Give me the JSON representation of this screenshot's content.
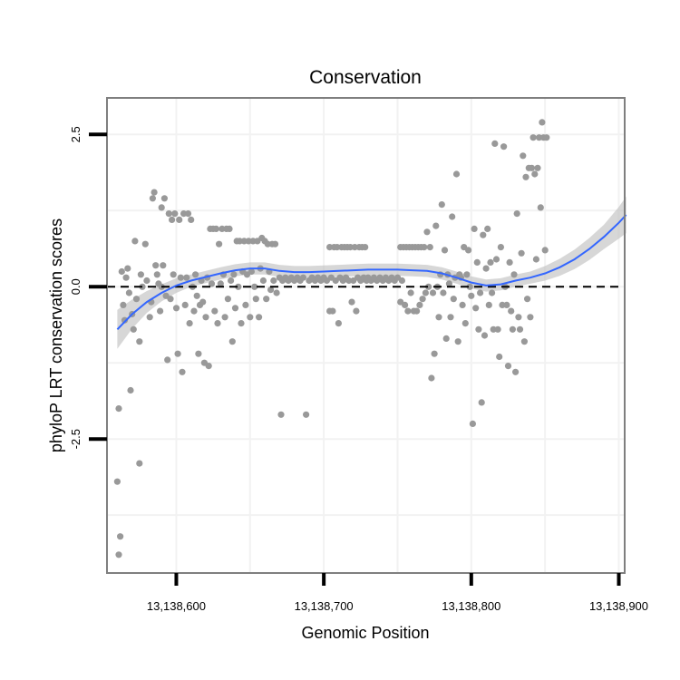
{
  "chart_data": {
    "type": "scatter",
    "title": "Conservation",
    "xlabel": "Genomic Position",
    "ylabel": "phyloP LRT conservation scores",
    "xlim": [
      13138553,
      13138904
    ],
    "ylim": [
      -4.7,
      3.1
    ],
    "x_ticks": [
      13138600,
      13138700,
      13138800,
      13138900
    ],
    "x_tick_labels": [
      "13,138,600",
      "13,138,700",
      "13,138,800",
      "13,138,900"
    ],
    "y_ticks": [
      -2.5,
      0,
      2.5
    ],
    "y_tick_labels": [
      "-2.5",
      "0.0",
      "2.5"
    ],
    "reference_line_y": 0,
    "colors": {
      "points": "#999999",
      "smooth": "#3366ff",
      "band": "#bdbdbd",
      "panel_border": "#7f7f7f",
      "grid": "#f2f2f2",
      "ref_line": "#000000"
    },
    "smooth": {
      "x": [
        13138560,
        13138570,
        13138580,
        13138590,
        13138600,
        13138610,
        13138620,
        13138630,
        13138640,
        13138650,
        13138660,
        13138670,
        13138680,
        13138690,
        13138700,
        13138710,
        13138720,
        13138730,
        13138740,
        13138750,
        13138760,
        13138770,
        13138780,
        13138790,
        13138800,
        13138810,
        13138820,
        13138830,
        13138840,
        13138850,
        13138860,
        13138870,
        13138880,
        13138890,
        13138900,
        13138905
      ],
      "y": [
        -0.7,
        -0.45,
        -0.25,
        -0.1,
        0.02,
        0.1,
        0.16,
        0.22,
        0.27,
        0.3,
        0.3,
        0.26,
        0.24,
        0.24,
        0.25,
        0.26,
        0.27,
        0.28,
        0.28,
        0.28,
        0.27,
        0.26,
        0.22,
        0.15,
        0.07,
        0.02,
        0.04,
        0.1,
        0.15,
        0.22,
        0.32,
        0.45,
        0.62,
        0.82,
        1.05,
        1.18
      ],
      "se": [
        0.32,
        0.24,
        0.18,
        0.14,
        0.12,
        0.1,
        0.1,
        0.1,
        0.1,
        0.1,
        0.1,
        0.1,
        0.1,
        0.1,
        0.1,
        0.1,
        0.1,
        0.1,
        0.1,
        0.1,
        0.1,
        0.1,
        0.1,
        0.1,
        0.1,
        0.1,
        0.1,
        0.1,
        0.1,
        0.12,
        0.14,
        0.16,
        0.18,
        0.2,
        0.26,
        0.3
      ]
    },
    "points": [
      [
        13138560,
        -3.2
      ],
      [
        13138561,
        -2.0
      ],
      [
        13138561,
        -4.4
      ],
      [
        13138562,
        -4.1
      ],
      [
        13138563,
        0.25
      ],
      [
        13138564,
        -0.3
      ],
      [
        13138565,
        -0.55
      ],
      [
        13138566,
        0.15
      ],
      [
        13138567,
        0.3
      ],
      [
        13138568,
        -0.1
      ],
      [
        13138569,
        -1.7
      ],
      [
        13138570,
        -0.45
      ],
      [
        13138571,
        -0.7
      ],
      [
        13138572,
        0.75
      ],
      [
        13138573,
        -0.2
      ],
      [
        13138575,
        -2.9
      ],
      [
        13138575,
        -0.9
      ],
      [
        13138576,
        0.2
      ],
      [
        13138577,
        0.0
      ],
      [
        13138579,
        0.7
      ],
      [
        13138580,
        0.1
      ],
      [
        13138582,
        -0.5
      ],
      [
        13138583,
        -0.25
      ],
      [
        13138584,
        1.45
      ],
      [
        13138585,
        1.55
      ],
      [
        13138586,
        0.35
      ],
      [
        13138587,
        0.2
      ],
      [
        13138588,
        0.05
      ],
      [
        13138589,
        -0.4
      ],
      [
        13138590,
        1.3
      ],
      [
        13138590,
        0.0
      ],
      [
        13138591,
        0.35
      ],
      [
        13138592,
        1.45
      ],
      [
        13138593,
        -0.15
      ],
      [
        13138594,
        -1.2
      ],
      [
        13138595,
        1.2
      ],
      [
        13138596,
        -0.2
      ],
      [
        13138597,
        1.1
      ],
      [
        13138598,
        0.2
      ],
      [
        13138599,
        1.2
      ],
      [
        13138600,
        -0.35
      ],
      [
        13138601,
        -1.1
      ],
      [
        13138602,
        1.1
      ],
      [
        13138603,
        0.15
      ],
      [
        13138604,
        -1.4
      ],
      [
        13138605,
        1.2
      ],
      [
        13138606,
        -0.3
      ],
      [
        13138607,
        0.15
      ],
      [
        13138608,
        1.2
      ],
      [
        13138609,
        -0.6
      ],
      [
        13138610,
        1.1
      ],
      [
        13138611,
        0.0
      ],
      [
        13138612,
        -0.4
      ],
      [
        13138613,
        0.2
      ],
      [
        13138614,
        -0.15
      ],
      [
        13138615,
        -1.1
      ],
      [
        13138616,
        -0.3
      ],
      [
        13138617,
        0.1
      ],
      [
        13138618,
        -0.25
      ],
      [
        13138619,
        -1.25
      ],
      [
        13138620,
        -0.5
      ],
      [
        13138621,
        0.15
      ],
      [
        13138622,
        -1.3
      ],
      [
        13138623,
        0.95
      ],
      [
        13138624,
        0.05
      ],
      [
        13138625,
        0.95
      ],
      [
        13138626,
        -0.4
      ],
      [
        13138627,
        0.95
      ],
      [
        13138628,
        -0.6
      ],
      [
        13138629,
        0.7
      ],
      [
        13138630,
        0.05
      ],
      [
        13138631,
        0.95
      ],
      [
        13138632,
        0.2
      ],
      [
        13138633,
        -0.5
      ],
      [
        13138634,
        0.95
      ],
      [
        13138635,
        -0.2
      ],
      [
        13138636,
        0.95
      ],
      [
        13138637,
        0.1
      ],
      [
        13138638,
        -0.9
      ],
      [
        13138639,
        0.2
      ],
      [
        13138640,
        -0.35
      ],
      [
        13138641,
        0.75
      ],
      [
        13138642,
        0.0
      ],
      [
        13138643,
        0.75
      ],
      [
        13138644,
        -0.6
      ],
      [
        13138645,
        0.25
      ],
      [
        13138646,
        0.75
      ],
      [
        13138647,
        -0.3
      ],
      [
        13138648,
        0.2
      ],
      [
        13138649,
        0.75
      ],
      [
        13138650,
        -0.5
      ],
      [
        13138651,
        0.25
      ],
      [
        13138652,
        0.75
      ],
      [
        13138653,
        0.0
      ],
      [
        13138654,
        -0.2
      ],
      [
        13138655,
        0.75
      ],
      [
        13138656,
        -0.5
      ],
      [
        13138657,
        0.3
      ],
      [
        13138658,
        0.8
      ],
      [
        13138659,
        0.1
      ],
      [
        13138660,
        0.75
      ],
      [
        13138661,
        -0.2
      ],
      [
        13138662,
        0.7
      ],
      [
        13138663,
        0.25
      ],
      [
        13138664,
        -0.05
      ],
      [
        13138665,
        0.7
      ],
      [
        13138666,
        0.1
      ],
      [
        13138667,
        0.7
      ],
      [
        13138668,
        -0.1
      ],
      [
        13138670,
        0.15
      ],
      [
        13138671,
        -2.1
      ],
      [
        13138672,
        0.1
      ],
      [
        13138674,
        0.15
      ],
      [
        13138676,
        0.1
      ],
      [
        13138678,
        0.15
      ],
      [
        13138680,
        0.1
      ],
      [
        13138682,
        0.15
      ],
      [
        13138684,
        0.1
      ],
      [
        13138686,
        0.15
      ],
      [
        13138688,
        -2.1
      ],
      [
        13138690,
        0.1
      ],
      [
        13138692,
        0.15
      ],
      [
        13138694,
        0.1
      ],
      [
        13138696,
        0.15
      ],
      [
        13138698,
        0.1
      ],
      [
        13138700,
        0.15
      ],
      [
        13138702,
        0.1
      ],
      [
        13138704,
        0.65
      ],
      [
        13138704,
        -0.4
      ],
      [
        13138705,
        0.15
      ],
      [
        13138706,
        -0.4
      ],
      [
        13138707,
        0.65
      ],
      [
        13138708,
        0.1
      ],
      [
        13138709,
        0.65
      ],
      [
        13138710,
        -0.6
      ],
      [
        13138711,
        0.15
      ],
      [
        13138712,
        0.65
      ],
      [
        13138713,
        0.1
      ],
      [
        13138714,
        0.65
      ],
      [
        13138715,
        0.15
      ],
      [
        13138716,
        0.65
      ],
      [
        13138717,
        0.1
      ],
      [
        13138718,
        0.65
      ],
      [
        13138719,
        -0.25
      ],
      [
        13138720,
        0.1
      ],
      [
        13138721,
        0.65
      ],
      [
        13138722,
        -0.4
      ],
      [
        13138723,
        0.15
      ],
      [
        13138724,
        0.65
      ],
      [
        13138725,
        0.1
      ],
      [
        13138726,
        0.65
      ],
      [
        13138727,
        0.15
      ],
      [
        13138728,
        0.65
      ],
      [
        13138729,
        0.1
      ],
      [
        13138730,
        0.15
      ],
      [
        13138732,
        0.1
      ],
      [
        13138734,
        0.15
      ],
      [
        13138736,
        0.1
      ],
      [
        13138738,
        0.15
      ],
      [
        13138740,
        0.1
      ],
      [
        13138742,
        0.15
      ],
      [
        13138744,
        0.1
      ],
      [
        13138746,
        0.15
      ],
      [
        13138748,
        0.1
      ],
      [
        13138750,
        0.15
      ],
      [
        13138752,
        0.65
      ],
      [
        13138752,
        -0.25
      ],
      [
        13138753,
        0.1
      ],
      [
        13138754,
        0.65
      ],
      [
        13138755,
        -0.3
      ],
      [
        13138756,
        0.65
      ],
      [
        13138757,
        -0.4
      ],
      [
        13138758,
        0.65
      ],
      [
        13138759,
        -0.1
      ],
      [
        13138760,
        0.65
      ],
      [
        13138761,
        -0.4
      ],
      [
        13138762,
        0.65
      ],
      [
        13138763,
        -0.4
      ],
      [
        13138764,
        0.65
      ],
      [
        13138765,
        -0.3
      ],
      [
        13138766,
        0.65
      ],
      [
        13138767,
        -0.2
      ],
      [
        13138768,
        0.65
      ],
      [
        13138769,
        -0.1
      ],
      [
        13138770,
        0.9
      ],
      [
        13138771,
        0.0
      ],
      [
        13138772,
        0.65
      ],
      [
        13138773,
        -1.5
      ],
      [
        13138774,
        -0.1
      ],
      [
        13138775,
        -1.1
      ],
      [
        13138776,
        1.0
      ],
      [
        13138777,
        0.0
      ],
      [
        13138778,
        -0.5
      ],
      [
        13138779,
        0.2
      ],
      [
        13138780,
        1.35
      ],
      [
        13138781,
        -0.1
      ],
      [
        13138782,
        0.6
      ],
      [
        13138783,
        -0.85
      ],
      [
        13138784,
        0.2
      ],
      [
        13138785,
        0.05
      ],
      [
        13138786,
        -0.5
      ],
      [
        13138787,
        1.15
      ],
      [
        13138788,
        -0.2
      ],
      [
        13138789,
        0.15
      ],
      [
        13138790,
        1.85
      ],
      [
        13138791,
        -0.9
      ],
      [
        13138792,
        0.2
      ],
      [
        13138793,
        0.15
      ],
      [
        13138794,
        -0.3
      ],
      [
        13138795,
        0.65
      ],
      [
        13138796,
        -0.6
      ],
      [
        13138797,
        0.2
      ],
      [
        13138798,
        0.6
      ],
      [
        13138799,
        0.0
      ],
      [
        13138800,
        -0.15
      ],
      [
        13138801,
        -2.25
      ],
      [
        13138802,
        0.95
      ],
      [
        13138803,
        -0.35
      ],
      [
        13138804,
        0.4
      ],
      [
        13138805,
        -0.7
      ],
      [
        13138806,
        -0.1
      ],
      [
        13138807,
        -1.9
      ],
      [
        13138808,
        0.85
      ],
      [
        13138809,
        -0.8
      ],
      [
        13138810,
        0.3
      ],
      [
        13138811,
        0.95
      ],
      [
        13138812,
        -0.3
      ],
      [
        13138813,
        0.4
      ],
      [
        13138814,
        -0.1
      ],
      [
        13138815,
        -0.7
      ],
      [
        13138816,
        2.35
      ],
      [
        13138817,
        0.45
      ],
      [
        13138818,
        -0.7
      ],
      [
        13138819,
        -1.15
      ],
      [
        13138820,
        0.65
      ],
      [
        13138821,
        -0.3
      ],
      [
        13138822,
        2.3
      ],
      [
        13138823,
        0.0
      ],
      [
        13138824,
        -0.3
      ],
      [
        13138825,
        -1.3
      ],
      [
        13138826,
        0.4
      ],
      [
        13138827,
        -0.4
      ],
      [
        13138828,
        -0.7
      ],
      [
        13138829,
        0.2
      ],
      [
        13138830,
        -1.4
      ],
      [
        13138831,
        1.2
      ],
      [
        13138832,
        -0.5
      ],
      [
        13138833,
        -0.7
      ],
      [
        13138834,
        0.55
      ],
      [
        13138835,
        2.15
      ],
      [
        13138836,
        -0.9
      ],
      [
        13138837,
        1.8
      ],
      [
        13138838,
        -0.2
      ],
      [
        13138839,
        1.95
      ],
      [
        13138840,
        -0.5
      ],
      [
        13138841,
        1.95
      ],
      [
        13138842,
        2.45
      ],
      [
        13138843,
        1.85
      ],
      [
        13138844,
        0.45
      ],
      [
        13138845,
        1.95
      ],
      [
        13138846,
        2.45
      ],
      [
        13138847,
        1.3
      ],
      [
        13138848,
        2.7
      ],
      [
        13138849,
        2.45
      ],
      [
        13138850,
        0.6
      ],
      [
        13138851,
        2.45
      ]
    ]
  }
}
